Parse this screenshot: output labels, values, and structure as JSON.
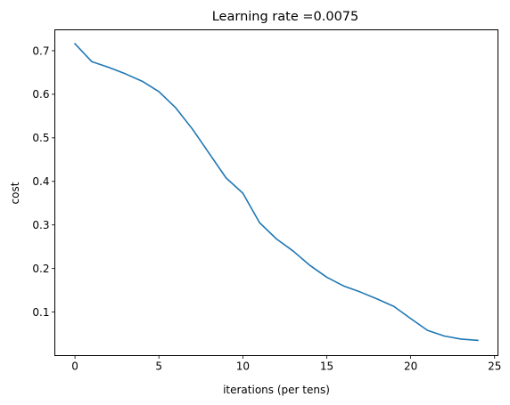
{
  "chart_data": {
    "type": "line",
    "title": "Learning rate =0.0075",
    "xlabel": "iterations (per tens)",
    "ylabel": "cost",
    "xlim": [
      -1.2,
      25.2
    ],
    "ylim": [
      0.0,
      0.748
    ],
    "xticks": [
      0,
      5,
      10,
      15,
      20,
      25
    ],
    "xtick_labels": [
      "0",
      "5",
      "10",
      "15",
      "20",
      "25"
    ],
    "yticks": [
      0.1,
      0.2,
      0.3,
      0.4,
      0.5,
      0.6,
      0.7
    ],
    "ytick_labels": [
      "0.1",
      "0.2",
      "0.3",
      "0.4",
      "0.5",
      "0.6",
      "0.7"
    ],
    "grid": false,
    "series": [
      {
        "color": "#1f77b4",
        "x": [
          0,
          1,
          2,
          3,
          4,
          5,
          6,
          7,
          8,
          9,
          10,
          11,
          12,
          13,
          14,
          15,
          16,
          17,
          18,
          19,
          20,
          21,
          22,
          23,
          24
        ],
        "y": [
          0.716,
          0.675,
          0.662,
          0.647,
          0.63,
          0.606,
          0.569,
          0.52,
          0.464,
          0.408,
          0.373,
          0.305,
          0.268,
          0.24,
          0.207,
          0.18,
          0.16,
          0.146,
          0.13,
          0.113,
          0.085,
          0.058,
          0.045,
          0.038,
          0.035
        ]
      }
    ]
  }
}
